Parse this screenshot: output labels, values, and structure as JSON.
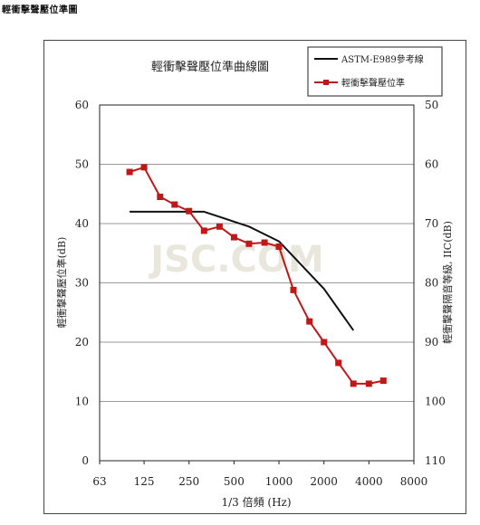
{
  "page": {
    "heading": "輕衝擊聲壓位準圖",
    "watermark": "JSC.COM"
  },
  "chart_data": {
    "type": "line",
    "title": "輕衝擊聲壓位準曲線圖",
    "xlabel": "1/3 倍頻 (Hz)",
    "ylabel": "輕衝擊聲壓位準(dB)",
    "y2label": "輕衝擊聲隔音等級, IIC(dB)",
    "x_scale": "log2",
    "xlim": [
      63,
      8000
    ],
    "x_ticks": [
      "63",
      "125",
      "250",
      "500",
      "1000",
      "2000",
      "4000",
      "8000"
    ],
    "ylim": [
      0,
      60
    ],
    "y_ticks": [
      "0",
      "10",
      "20",
      "30",
      "40",
      "50",
      "60"
    ],
    "y2_ticks": [
      "110",
      "100",
      "90",
      "80",
      "70",
      "60",
      "50"
    ],
    "grid": "horizontal",
    "legend_position": "top-right",
    "series": [
      {
        "name": "ASTM-E989參考線",
        "color": "#111111",
        "marker": "none",
        "x": [
          100,
          160,
          315,
          630,
          1000,
          2000,
          3150
        ],
        "y": [
          42,
          42,
          42,
          39.5,
          37,
          29,
          22
        ]
      },
      {
        "name": "輕衝擊聲壓位準",
        "color": "#c01818",
        "marker": "square",
        "x": [
          100,
          125,
          160,
          200,
          250,
          315,
          400,
          500,
          630,
          800,
          1000,
          1250,
          1600,
          2000,
          2500,
          3150,
          4000,
          5000
        ],
        "y": [
          48.7,
          49.5,
          44.5,
          43.2,
          42.1,
          38.8,
          39.5,
          37.7,
          36.6,
          36.8,
          36.1,
          28.8,
          23.5,
          20,
          16.5,
          13,
          13,
          13.5
        ]
      }
    ]
  }
}
